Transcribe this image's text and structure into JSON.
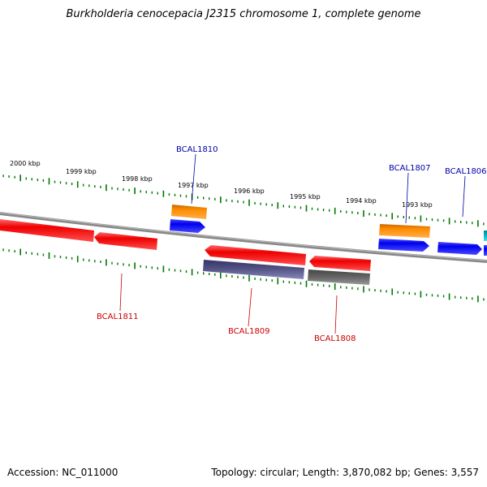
{
  "header": {
    "title": "Burkholderia cenocepacia J2315 chromosome 1, complete genome"
  },
  "footer": {
    "accession": "Accession: NC_011000",
    "topology": "Topology: circular; Length: 3,870,082 bp; Genes: 3,557"
  },
  "scale_labels": [
    "2000 kbp",
    "1999 kbp",
    "1998 kbp",
    "1997 kbp",
    "1996 kbp",
    "1995 kbp",
    "1994 kbp",
    "1993 kbp"
  ],
  "genes": {
    "bcal1810": "BCAL1810",
    "bcal1807": "BCAL1807",
    "bcal1806": "BCAL1806",
    "bcal1811": "BCAL1811",
    "bcal1809": "BCAL1809",
    "bcal1808": "BCAL1808"
  },
  "colors": {
    "backbone": "#888888",
    "forward_cds": "#0000ee",
    "reverse_cds": "#ee0000",
    "orange_feature": "#ff8c00",
    "gray_feature": "#666666",
    "purple_feature": "#555588",
    "cyan_feature": "#00bbcc",
    "tick": "#007700"
  }
}
